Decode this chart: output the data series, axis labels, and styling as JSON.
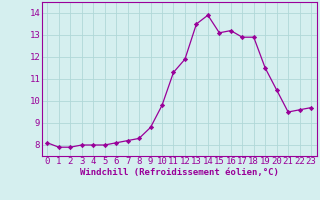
{
  "x": [
    0,
    1,
    2,
    3,
    4,
    5,
    6,
    7,
    8,
    9,
    10,
    11,
    12,
    13,
    14,
    15,
    16,
    17,
    18,
    19,
    20,
    21,
    22,
    23
  ],
  "y": [
    8.1,
    7.9,
    7.9,
    8.0,
    8.0,
    8.0,
    8.1,
    8.2,
    8.3,
    8.8,
    9.8,
    11.3,
    11.9,
    13.5,
    13.9,
    13.1,
    13.2,
    12.9,
    12.9,
    11.5,
    10.5,
    9.5,
    9.6,
    9.7
  ],
  "line_color": "#990099",
  "marker": "D",
  "marker_size": 2.2,
  "background_color": "#d5efef",
  "grid_color": "#b0d8d8",
  "xlabel": "Windchill (Refroidissement éolien,°C)",
  "xlim": [
    -0.5,
    23.5
  ],
  "ylim": [
    7.5,
    14.5
  ],
  "yticks": [
    8,
    9,
    10,
    11,
    12,
    13,
    14
  ],
  "xticks": [
    0,
    1,
    2,
    3,
    4,
    5,
    6,
    7,
    8,
    9,
    10,
    11,
    12,
    13,
    14,
    15,
    16,
    17,
    18,
    19,
    20,
    21,
    22,
    23
  ],
  "xlabel_fontsize": 6.5,
  "tick_fontsize": 6.5,
  "tick_color": "#990099",
  "spine_color": "#990099"
}
